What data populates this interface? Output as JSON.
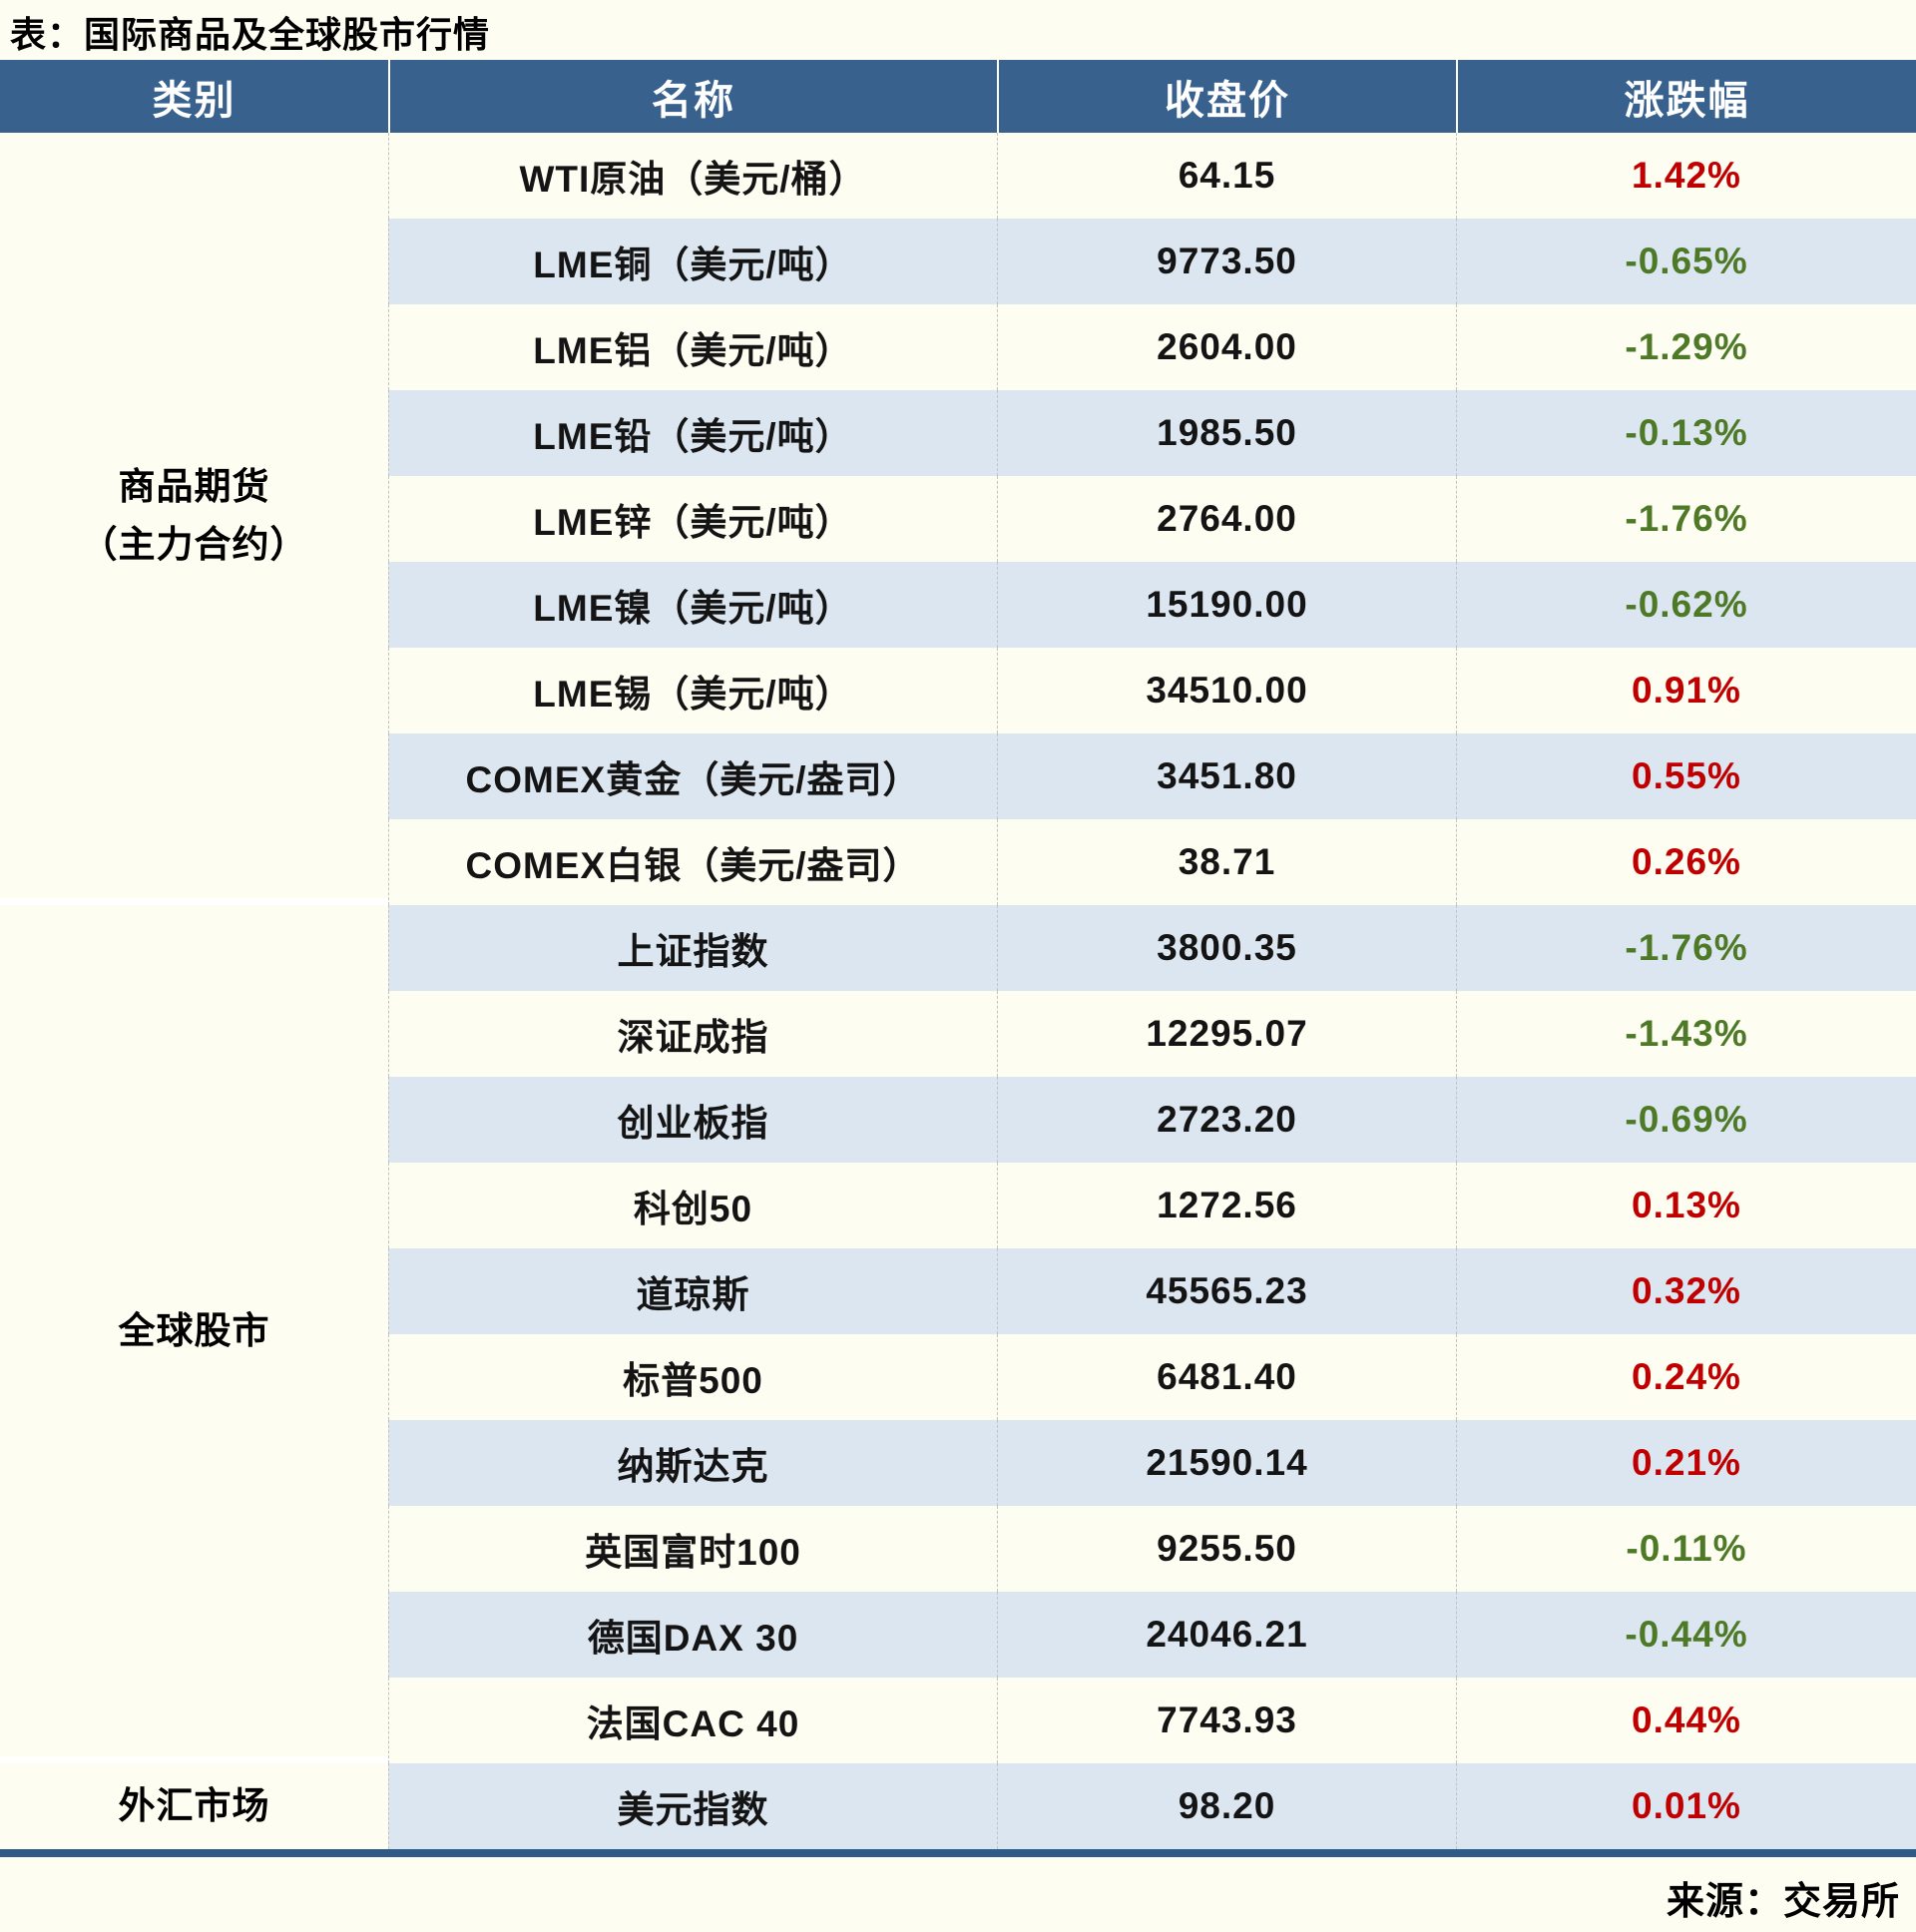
{
  "page": {
    "title": "表：国际商品及全球股市行情",
    "source": "来源：交易所"
  },
  "colors": {
    "header_bg": "#38618E",
    "stripe_bg": "#DCE6F1",
    "up_red": "#C00000",
    "down_green": "#4E7A27",
    "page_bg": "#FEFDF2",
    "bottom_border": "#2F5B88"
  },
  "table": {
    "headers": [
      "类别",
      "名称",
      "收盘价",
      "涨跌幅"
    ],
    "sections": [
      {
        "category_lines": [
          "商品期货",
          "（主力合约）"
        ],
        "rows": [
          {
            "name": "WTI原油（美元/桶）",
            "close": "64.15",
            "change": "1.42%"
          },
          {
            "name": "LME铜（美元/吨）",
            "close": "9773.50",
            "change": "-0.65%"
          },
          {
            "name": "LME铝（美元/吨）",
            "close": "2604.00",
            "change": "-1.29%"
          },
          {
            "name": "LME铅（美元/吨）",
            "close": "1985.50",
            "change": "-0.13%"
          },
          {
            "name": "LME锌（美元/吨）",
            "close": "2764.00",
            "change": "-1.76%"
          },
          {
            "name": "LME镍（美元/吨）",
            "close": "15190.00",
            "change": "-0.62%"
          },
          {
            "name": "LME锡（美元/吨）",
            "close": "34510.00",
            "change": "0.91%"
          },
          {
            "name": "COMEX黄金（美元/盎司）",
            "close": "3451.80",
            "change": "0.55%"
          },
          {
            "name": "COMEX白银（美元/盎司）",
            "close": "38.71",
            "change": "0.26%"
          }
        ]
      },
      {
        "category_lines": [
          "全球股市"
        ],
        "rows": [
          {
            "name": "上证指数",
            "close": "3800.35",
            "change": "-1.76%"
          },
          {
            "name": "深证成指",
            "close": "12295.07",
            "change": "-1.43%"
          },
          {
            "name": "创业板指",
            "close": "2723.20",
            "change": "-0.69%"
          },
          {
            "name": "科创50",
            "close": "1272.56",
            "change": "0.13%"
          },
          {
            "name": "道琼斯",
            "close": "45565.23",
            "change": "0.32%"
          },
          {
            "name": "标普500",
            "close": "6481.40",
            "change": "0.24%"
          },
          {
            "name": "纳斯达克",
            "close": "21590.14",
            "change": "0.21%"
          },
          {
            "name": "英国富时100",
            "close": "9255.50",
            "change": "-0.11%"
          },
          {
            "name": "德国DAX 30",
            "close": "24046.21",
            "change": "-0.44%"
          },
          {
            "name": "法国CAC 40",
            "close": "7743.93",
            "change": "0.44%"
          }
        ]
      },
      {
        "category_lines": [
          "外汇市场"
        ],
        "rows": [
          {
            "name": "美元指数",
            "close": "98.20",
            "change": "0.01%"
          }
        ]
      }
    ]
  },
  "chart_data": {
    "type": "table",
    "title": "表：国际商品及全球股市行情",
    "columns": [
      "类别",
      "名称",
      "收盘价",
      "涨跌幅"
    ],
    "rows": [
      [
        "商品期货（主力合约）",
        "WTI原油（美元/桶）",
        64.15,
        "1.42%"
      ],
      [
        "商品期货（主力合约）",
        "LME铜（美元/吨）",
        9773.5,
        "-0.65%"
      ],
      [
        "商品期货（主力合约）",
        "LME铝（美元/吨）",
        2604.0,
        "-1.29%"
      ],
      [
        "商品期货（主力合约）",
        "LME铅（美元/吨）",
        1985.5,
        "-0.13%"
      ],
      [
        "商品期货（主力合约）",
        "LME锌（美元/吨）",
        2764.0,
        "-1.76%"
      ],
      [
        "商品期货（主力合约）",
        "LME镍（美元/吨）",
        15190.0,
        "-0.62%"
      ],
      [
        "商品期货（主力合约）",
        "LME锡（美元/吨）",
        34510.0,
        "0.91%"
      ],
      [
        "商品期货（主力合约）",
        "COMEX黄金（美元/盎司）",
        3451.8,
        "0.55%"
      ],
      [
        "商品期货（主力合约）",
        "COMEX白银（美元/盎司）",
        38.71,
        "0.26%"
      ],
      [
        "全球股市",
        "上证指数",
        3800.35,
        "-1.76%"
      ],
      [
        "全球股市",
        "深证成指",
        12295.07,
        "-1.43%"
      ],
      [
        "全球股市",
        "创业板指",
        2723.2,
        "-0.69%"
      ],
      [
        "全球股市",
        "科创50",
        1272.56,
        "0.13%"
      ],
      [
        "全球股市",
        "道琼斯",
        45565.23,
        "0.32%"
      ],
      [
        "全球股市",
        "标普500",
        6481.4,
        "0.24%"
      ],
      [
        "全球股市",
        "纳斯达克",
        21590.14,
        "0.21%"
      ],
      [
        "全球股市",
        "英国富时100",
        9255.5,
        "-0.11%"
      ],
      [
        "全球股市",
        "德国DAX 30",
        24046.21,
        "-0.44%"
      ],
      [
        "全球股市",
        "法国CAC 40",
        7743.93,
        "0.44%"
      ],
      [
        "外汇市场",
        "美元指数",
        98.2,
        "0.01%"
      ]
    ],
    "source": "来源：交易所",
    "layout_hints": {
      "positive_change_color": "red #C00000",
      "negative_change_color": "green #4E7A27",
      "striped_rows": true,
      "header_bg": "#38618E"
    }
  }
}
